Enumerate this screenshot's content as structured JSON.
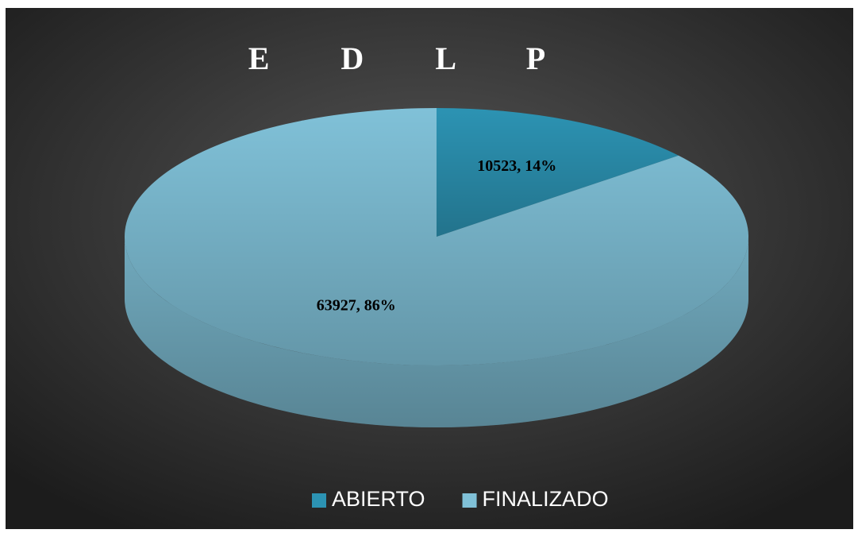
{
  "chart_data": {
    "type": "pie3d",
    "title": "E D L P",
    "categories": [
      "ABIERTO",
      "FINALIZADO"
    ],
    "values": [
      10523,
      63927
    ],
    "value_labels": [
      "10523, 14%",
      "63927, 86%"
    ],
    "colors": [
      "#2c93b3",
      "#80c1d8"
    ],
    "legend": "bottom"
  }
}
